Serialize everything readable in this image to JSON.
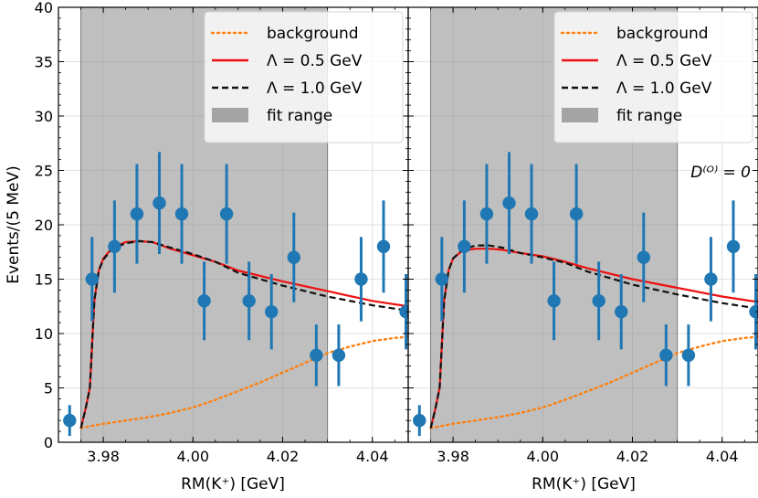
{
  "chart_data": [
    {
      "type": "scatter",
      "panel": "left",
      "xlim": [
        3.97,
        4.048
      ],
      "ylim": [
        0,
        40
      ],
      "fit_range": [
        3.975,
        4.03
      ],
      "xlabel": "RM(K⁺) [GeV]",
      "ylabel": "Events/(5 MeV)",
      "xticks": [
        "3.98",
        "4.00",
        "4.02",
        "4.04"
      ],
      "xtick_values": [
        3.98,
        4.0,
        4.02,
        4.04
      ],
      "yticks": [
        "0",
        "5",
        "10",
        "15",
        "20",
        "25",
        "30",
        "35",
        "40"
      ],
      "ytick_values": [
        0,
        5,
        10,
        15,
        20,
        25,
        30,
        35,
        40
      ],
      "legend": {
        "position": "top-right",
        "entries": [
          "background",
          "Λ =  0.5 GeV",
          "Λ =  1.0 GeV",
          "fit range"
        ]
      },
      "data_points": {
        "x": [
          3.9725,
          3.9775,
          3.9825,
          3.9875,
          3.9925,
          3.9975,
          4.0025,
          4.0075,
          4.0125,
          4.0175,
          4.0225,
          4.0275,
          4.0325,
          4.0375,
          4.0425,
          4.0475
        ],
        "y": [
          2,
          15,
          18,
          21,
          22,
          21,
          13,
          21,
          13,
          12,
          17,
          8,
          8,
          15,
          18,
          12
        ]
      },
      "series": [
        {
          "name": "background",
          "color": "#ff7f0e",
          "style": "dotted",
          "x": [
            3.975,
            3.98,
            3.985,
            3.99,
            3.995,
            4.0,
            4.005,
            4.01,
            4.015,
            4.02,
            4.025,
            4.03,
            4.035,
            4.04,
            4.045,
            4.048
          ],
          "y": [
            1.3,
            1.7,
            2.0,
            2.3,
            2.7,
            3.2,
            3.9,
            4.7,
            5.5,
            6.4,
            7.3,
            8.2,
            8.8,
            9.3,
            9.6,
            9.7
          ]
        },
        {
          "name": "Λ = 0.5 GeV",
          "color": "#ee1111",
          "style": "solid",
          "x": [
            3.975,
            3.976,
            3.977,
            3.978,
            3.979,
            3.98,
            3.982,
            3.985,
            3.988,
            3.991,
            3.995,
            4.0,
            4.005,
            4.01,
            4.02,
            4.03,
            4.04,
            4.048
          ],
          "y": [
            1.3,
            3.0,
            5.0,
            13.0,
            15.8,
            16.9,
            17.9,
            18.4,
            18.5,
            18.4,
            17.8,
            17.2,
            16.6,
            15.8,
            14.8,
            13.9,
            13.0,
            12.5
          ]
        },
        {
          "name": "Λ = 1.0 GeV",
          "color": "#111111",
          "style": "dashed",
          "x": [
            3.975,
            3.976,
            3.977,
            3.978,
            3.979,
            3.98,
            3.982,
            3.985,
            3.988,
            3.991,
            3.995,
            4.0,
            4.005,
            4.01,
            4.02,
            4.03,
            4.04,
            4.048
          ],
          "y": [
            1.3,
            3.0,
            5.0,
            13.0,
            15.8,
            16.8,
            17.8,
            18.3,
            18.5,
            18.4,
            17.9,
            17.3,
            16.6,
            15.6,
            14.4,
            13.4,
            12.6,
            12.1
          ]
        }
      ]
    },
    {
      "type": "scatter",
      "panel": "right",
      "xlim": [
        3.97,
        4.048
      ],
      "ylim": [
        0,
        40
      ],
      "fit_range": [
        3.975,
        4.03
      ],
      "xlabel": "RM(K⁺) [GeV]",
      "ylabel": "",
      "xticks": [
        "3.98",
        "4.00",
        "4.02",
        "4.04"
      ],
      "xtick_values": [
        3.98,
        4.0,
        4.02,
        4.04
      ],
      "annotation": "D⁽ᴼ⁾ = 0",
      "legend": {
        "position": "top-right",
        "entries": [
          "background",
          "Λ =  0.5 GeV",
          "Λ =  1.0 GeV",
          "fit range"
        ]
      },
      "data_points": {
        "x": [
          3.9725,
          3.9775,
          3.9825,
          3.9875,
          3.9925,
          3.9975,
          4.0025,
          4.0075,
          4.0125,
          4.0175,
          4.0225,
          4.0275,
          4.0325,
          4.0375,
          4.0425,
          4.0475
        ],
        "y": [
          2,
          15,
          18,
          21,
          22,
          21,
          13,
          21,
          13,
          12,
          17,
          8,
          8,
          15,
          18,
          12
        ]
      },
      "series": [
        {
          "name": "background",
          "color": "#ff7f0e",
          "style": "dotted",
          "x": [
            3.975,
            3.98,
            3.985,
            3.99,
            3.995,
            4.0,
            4.005,
            4.01,
            4.015,
            4.02,
            4.025,
            4.03,
            4.035,
            4.04,
            4.045,
            4.048
          ],
          "y": [
            1.3,
            1.7,
            2.0,
            2.3,
            2.7,
            3.2,
            3.9,
            4.7,
            5.5,
            6.4,
            7.3,
            8.2,
            8.8,
            9.3,
            9.6,
            9.7
          ]
        },
        {
          "name": "Λ = 0.5 GeV",
          "color": "#ee1111",
          "style": "solid",
          "x": [
            3.975,
            3.976,
            3.977,
            3.978,
            3.979,
            3.98,
            3.982,
            3.985,
            3.988,
            3.991,
            3.995,
            4.0,
            4.005,
            4.01,
            4.02,
            4.03,
            4.04,
            4.048
          ],
          "y": [
            1.3,
            3.0,
            5.0,
            13.0,
            15.8,
            16.9,
            17.6,
            17.8,
            17.8,
            17.7,
            17.4,
            17.1,
            16.6,
            16.0,
            15.0,
            14.2,
            13.4,
            12.9
          ]
        },
        {
          "name": "Λ = 1.0 GeV",
          "color": "#111111",
          "style": "dashed",
          "x": [
            3.975,
            3.976,
            3.977,
            3.978,
            3.979,
            3.98,
            3.982,
            3.985,
            3.988,
            3.991,
            3.995,
            4.0,
            4.005,
            4.01,
            4.02,
            4.03,
            4.04,
            4.048
          ],
          "y": [
            1.3,
            3.0,
            5.0,
            13.0,
            15.8,
            16.9,
            17.7,
            18.1,
            18.1,
            17.9,
            17.4,
            17.0,
            16.5,
            15.7,
            14.5,
            13.6,
            12.8,
            12.3
          ]
        }
      ]
    }
  ]
}
